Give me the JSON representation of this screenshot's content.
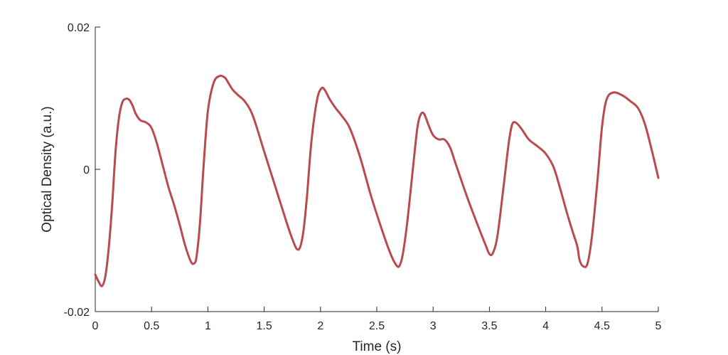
{
  "chart_data": {
    "type": "line",
    "title": "",
    "xlabel": "Time (s)",
    "ylabel": "Optical Density (a.u.)",
    "xlim": [
      0,
      5
    ],
    "ylim": [
      -0.02,
      0.02
    ],
    "x_ticks": [
      0,
      0.5,
      1,
      1.5,
      2,
      2.5,
      3,
      3.5,
      4,
      4.5,
      5
    ],
    "x_tick_labels": [
      "0",
      "0.5",
      "1",
      "1.5",
      "2",
      "2.5",
      "3",
      "3.5",
      "4",
      "4.5",
      "5"
    ],
    "y_ticks": [
      -0.02,
      0,
      0.02
    ],
    "y_tick_labels": [
      "-0.02",
      "0",
      "0.02"
    ],
    "grid": false,
    "line_color": "#b94a4f",
    "series": [
      {
        "x": [
          0,
          0.03,
          0.06,
          0.09,
          0.12,
          0.15,
          0.18,
          0.21,
          0.24,
          0.27,
          0.3,
          0.33,
          0.36,
          0.4,
          0.45,
          0.5,
          0.55,
          0.6,
          0.65,
          0.7,
          0.75,
          0.8,
          0.85,
          0.88,
          0.9,
          0.93,
          0.96,
          1.0,
          1.05,
          1.1,
          1.15,
          1.18,
          1.22,
          1.27,
          1.33,
          1.4,
          1.5,
          1.6,
          1.7,
          1.75,
          1.79,
          1.82,
          1.85,
          1.88,
          1.92,
          1.97,
          2.01,
          2.04,
          2.08,
          2.13,
          2.19,
          2.26,
          2.35,
          2.45,
          2.55,
          2.62,
          2.67,
          2.7,
          2.73,
          2.77,
          2.82,
          2.86,
          2.89,
          2.92,
          2.96,
          3.0,
          3.05,
          3.1,
          3.15,
          3.2,
          3.3,
          3.4,
          3.47,
          3.5,
          3.53,
          3.57,
          3.62,
          3.67,
          3.7,
          3.73,
          3.78,
          3.85,
          3.93,
          4.0,
          4.07,
          4.13,
          4.19,
          4.24,
          4.28,
          4.3,
          4.33,
          4.37,
          4.41,
          4.46,
          4.5,
          4.54,
          4.6,
          4.68,
          4.75,
          4.82,
          4.88,
          4.94,
          5.0
        ],
        "y": [
          -0.0148,
          -0.0158,
          -0.0164,
          -0.015,
          -0.011,
          -0.005,
          0.0025,
          0.0072,
          0.0094,
          0.0099,
          0.0098,
          0.009,
          0.0078,
          0.0069,
          0.0066,
          0.0058,
          0.0035,
          0.0005,
          -0.0025,
          -0.005,
          -0.0078,
          -0.0108,
          -0.013,
          -0.0132,
          -0.0122,
          -0.0075,
          0.0,
          0.0082,
          0.0121,
          0.0131,
          0.0129,
          0.0122,
          0.0112,
          0.0104,
          0.0095,
          0.0075,
          0.0025,
          -0.0025,
          -0.0075,
          -0.0098,
          -0.0112,
          -0.0109,
          -0.0085,
          -0.0038,
          0.004,
          0.0098,
          0.0114,
          0.0111,
          0.0099,
          0.0087,
          0.0075,
          0.0058,
          0.0018,
          -0.0038,
          -0.0087,
          -0.0118,
          -0.0134,
          -0.0136,
          -0.012,
          -0.0075,
          0.0,
          0.0058,
          0.0077,
          0.0078,
          0.0062,
          0.0048,
          0.0042,
          0.0042,
          0.0031,
          0.0008,
          -0.0038,
          -0.008,
          -0.0108,
          -0.0119,
          -0.0118,
          -0.0095,
          -0.0032,
          0.0035,
          0.0062,
          0.0066,
          0.0058,
          0.0042,
          0.0032,
          0.0022,
          0.0003,
          -0.0028,
          -0.0062,
          -0.0088,
          -0.0108,
          -0.0127,
          -0.0136,
          -0.0133,
          -0.0095,
          -0.0015,
          0.006,
          0.0098,
          0.0108,
          0.0104,
          0.0096,
          0.0086,
          0.0064,
          0.0028,
          -0.0012
        ]
      }
    ]
  }
}
